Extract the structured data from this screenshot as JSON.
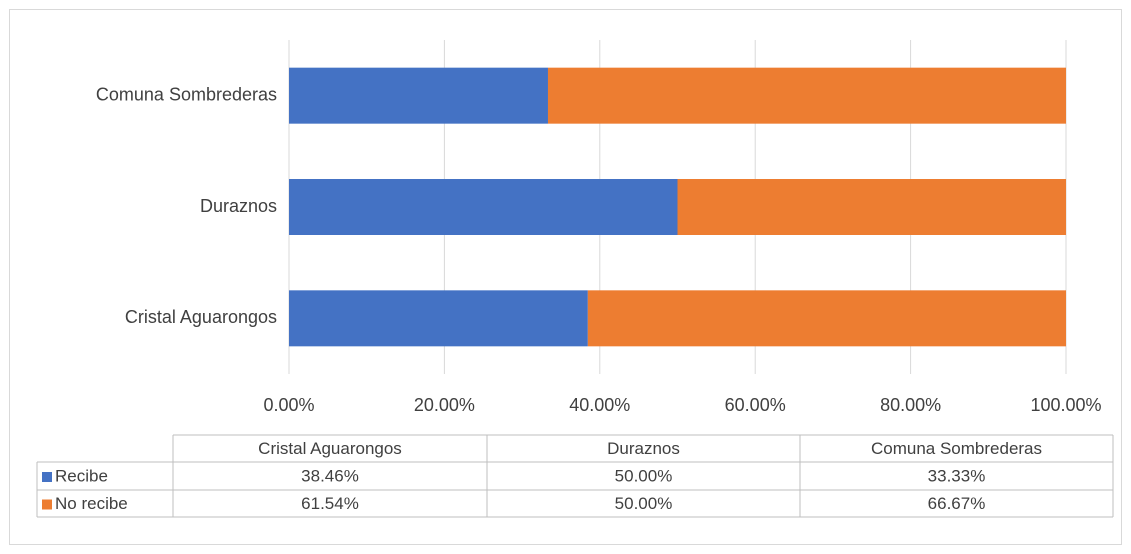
{
  "chart_data": {
    "type": "stacked-bar-horizontal",
    "categories": [
      "Cristal Aguarongos",
      "Duraznos",
      "Comuna Sombrederas"
    ],
    "series": [
      {
        "name": "Recibe",
        "color": "#4472c4",
        "values": [
          38.46,
          50.0,
          33.33
        ],
        "value_labels": [
          "38.46%",
          "50.00%",
          "33.33%"
        ]
      },
      {
        "name": "No recibe",
        "color": "#ed7d31",
        "values": [
          61.54,
          50.0,
          66.67
        ],
        "value_labels": [
          "61.54%",
          "50.00%",
          "66.67%"
        ]
      }
    ],
    "xlim": [
      0,
      100
    ],
    "xticks": [
      {
        "value": 0,
        "label": "0.00%"
      },
      {
        "value": 20,
        "label": "20.00%"
      },
      {
        "value": 40,
        "label": "40.00%"
      },
      {
        "value": 60,
        "label": "60.00%"
      },
      {
        "value": 80,
        "label": "80.00%"
      },
      {
        "value": 100,
        "label": "100.00%"
      }
    ],
    "grid": true
  }
}
